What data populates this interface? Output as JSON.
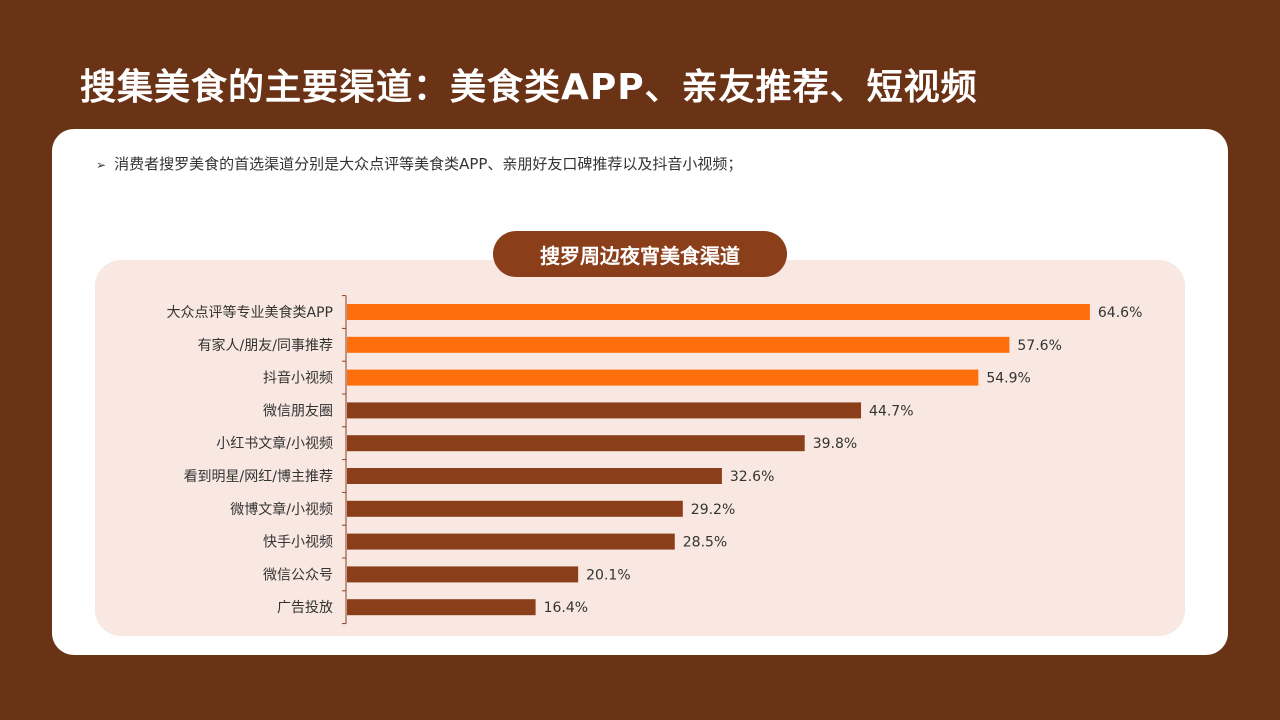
{
  "page": {
    "title": "搜集美食的主要渠道：美食类APP、亲友推荐、短视频"
  },
  "card": {
    "bullet_icon": "arrow-bullet-icon",
    "bullet_text": "消费者搜罗美食的首选渠道分别是大众点评等美食类APP、亲朋好友口碑推荐以及抖音小视频；"
  },
  "colors": {
    "background": "#6B3316",
    "highlight_bar": "#FF6E0D",
    "normal_bar": "#8B3E1A",
    "panel": "#F8E8E1"
  },
  "chart_data": {
    "type": "bar",
    "orientation": "horizontal",
    "title": "搜罗周边夜宵美食渠道",
    "categories": [
      "大众点评等专业美食类APP",
      "有家人/朋友/同事推荐",
      "抖音小视频",
      "微信朋友圈",
      "小红书文章/小视频",
      "看到明星/网红/博主推荐",
      "微博文章/小视频",
      "快手小视频",
      "微信公众号",
      "广告投放"
    ],
    "values": [
      64.6,
      57.6,
      54.9,
      44.7,
      39.8,
      32.6,
      29.2,
      28.5,
      20.1,
      16.4
    ],
    "value_labels": [
      "64.6%",
      "57.6%",
      "54.9%",
      "44.7%",
      "39.8%",
      "32.6%",
      "29.2%",
      "28.5%",
      "20.1%",
      "16.4%"
    ],
    "highlighted_count": 3,
    "unit": "%",
    "xlim": [
      0,
      100
    ]
  }
}
